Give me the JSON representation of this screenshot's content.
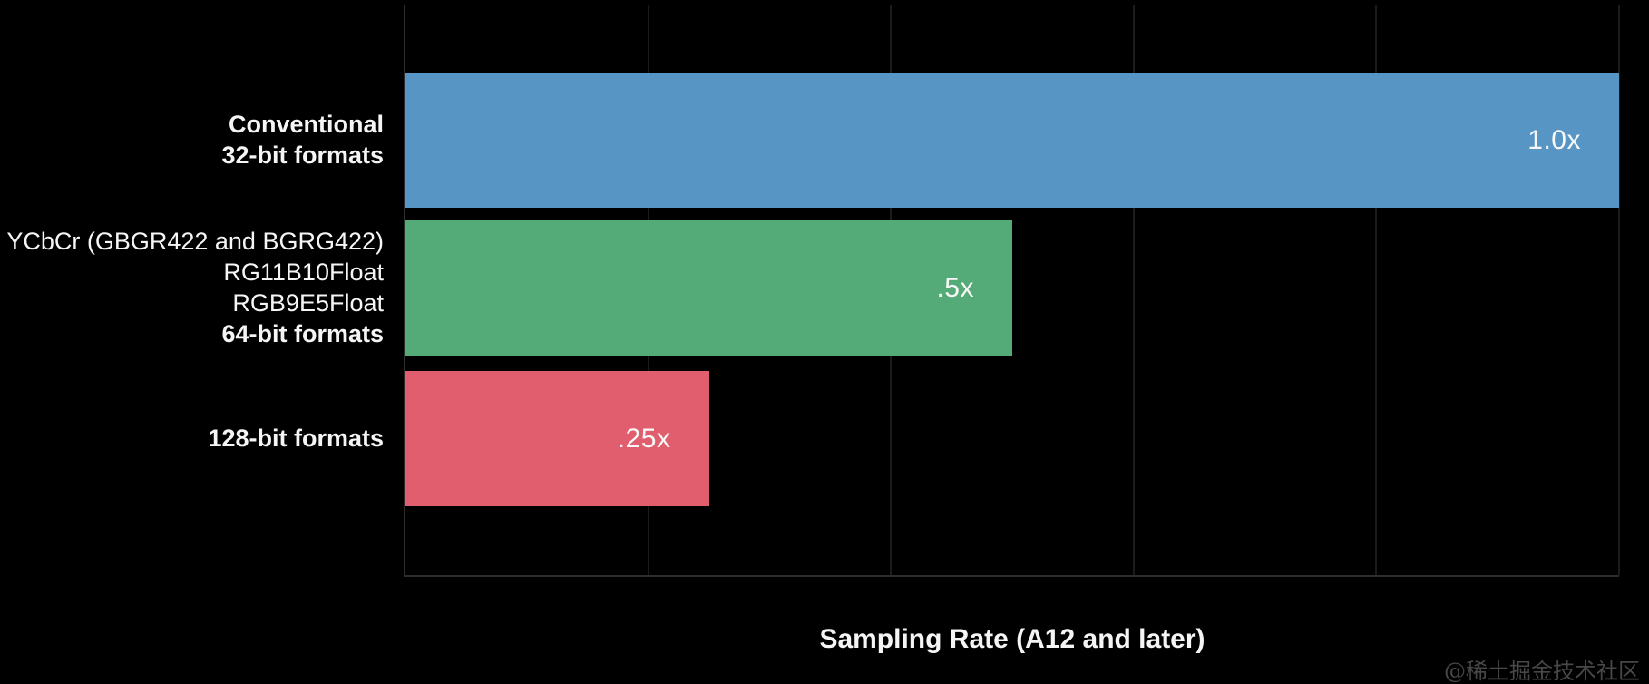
{
  "chart_data": {
    "type": "bar",
    "orientation": "horizontal",
    "xlabel": "Sampling Rate (A12 and later)",
    "ylabel": "",
    "xlim": [
      0,
      1.0
    ],
    "gridlines_x": [
      0.2,
      0.4,
      0.6,
      0.8,
      1.0
    ],
    "grid": true,
    "legend": false,
    "bars": [
      {
        "category_lines": [
          "Conventional",
          "32-bit formats"
        ],
        "bold_lines": [
          true,
          true
        ],
        "value": 1.0,
        "value_label": "1.0x",
        "color": "#5796c4"
      },
      {
        "category_lines": [
          "YCbCr (GBGR422 and BGRG422)",
          "RG11B10Float",
          "RGB9E5Float",
          "64-bit formats"
        ],
        "bold_lines": [
          false,
          false,
          false,
          true
        ],
        "value": 0.5,
        "value_label": ".5x",
        "color": "#55ab78"
      },
      {
        "category_lines": [
          "128-bit formats"
        ],
        "bold_lines": [
          true
        ],
        "value": 0.25,
        "value_label": ".25x",
        "color": "#e05e6d"
      }
    ]
  },
  "colors": {
    "background": "#000000",
    "bar_blue": "#5796c4",
    "bar_green": "#55ab78",
    "bar_red": "#e05e6d",
    "text": "#f5f5f5"
  },
  "watermark": "@稀土掘金技术社区"
}
